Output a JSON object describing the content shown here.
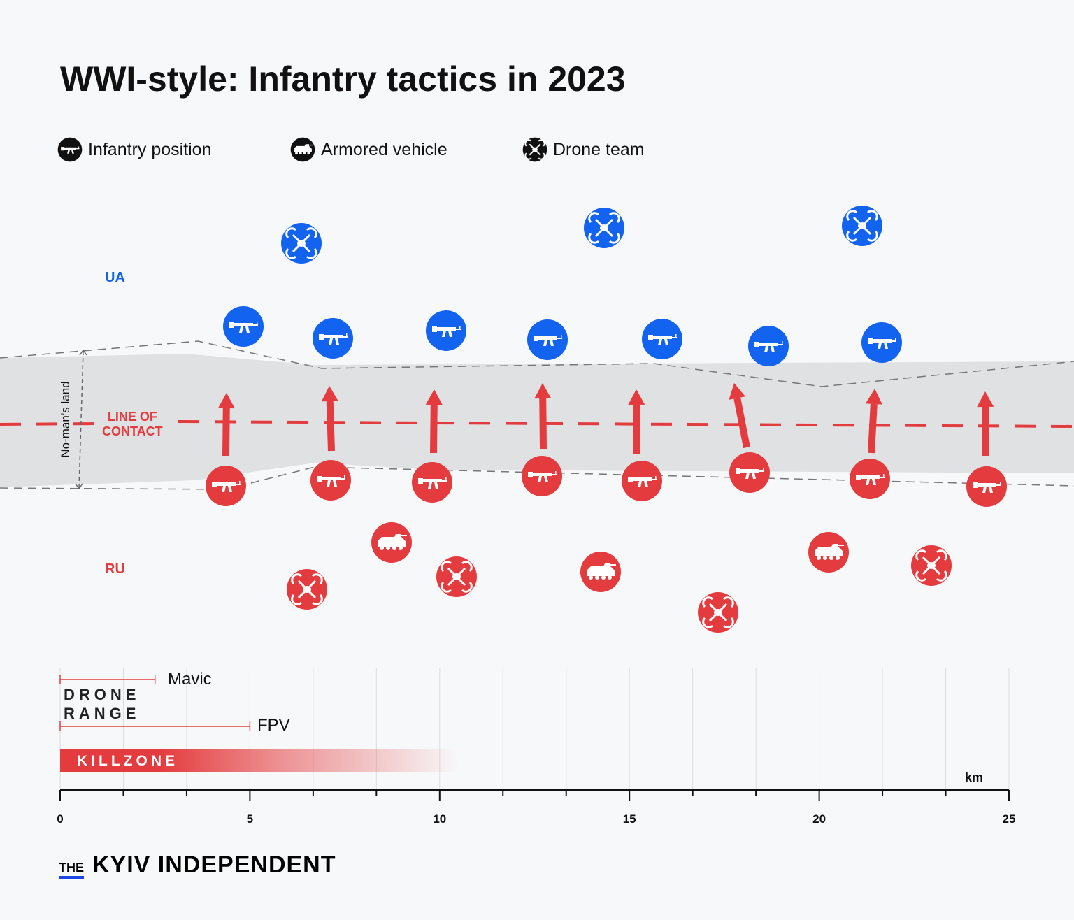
{
  "title": "WWI-style: Infantry tactics in 2023",
  "legend": [
    {
      "label": "Infantry position",
      "icon": "rifle-icon"
    },
    {
      "label": "Armored vehicle",
      "icon": "armored-vehicle-icon"
    },
    {
      "label": "Drone team",
      "icon": "drone-icon"
    }
  ],
  "sides": {
    "ua": "UA",
    "ru": "RU"
  },
  "line_of_contact": [
    "LINE OF",
    "CONTACT"
  ],
  "no_mans_land": "No-man’s land",
  "colors": {
    "ua": "#1163f0",
    "ru": "#e43c3e",
    "band": "#e0e1e3",
    "background": "#f7f8fa"
  },
  "units": {
    "ua_infantry_count": 7,
    "ua_drone_count": 3,
    "ru_infantry_count": 8,
    "ru_armored_count": 3,
    "ru_drone_count": 4,
    "ru_advance_arrows": 8
  },
  "scale": {
    "drone_range_label": [
      "DRONE",
      "RANGE"
    ],
    "ranges": [
      {
        "label": "Mavic",
        "km": 2.5
      },
      {
        "label": "FPV",
        "km": 5
      }
    ],
    "killzone_label": "KILLZONE",
    "killzone_km": 10.5,
    "unit": "km",
    "ticks": [
      "0",
      "5",
      "10",
      "15",
      "20",
      "25"
    ],
    "max_km": 25
  },
  "logo": {
    "the": "THE",
    "name": "KYIV INDEPENDENT"
  }
}
